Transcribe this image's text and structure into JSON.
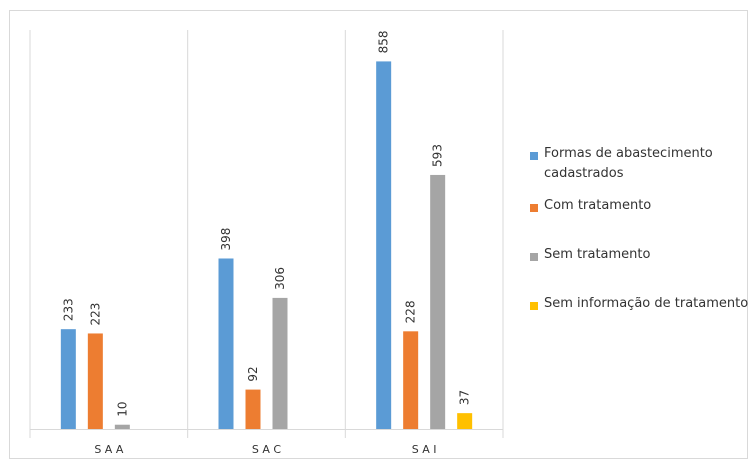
{
  "chart_data": {
    "type": "bar",
    "categories": [
      "S A A",
      "S A C",
      "S A I"
    ],
    "series": [
      {
        "name": "Formas de abastecimento cadastrados",
        "color": "#5B9BD5",
        "values": [
          233,
          398,
          858
        ]
      },
      {
        "name": "Com tratamento",
        "color": "#ED7D31",
        "values": [
          223,
          92,
          228
        ]
      },
      {
        "name": "Sem tratamento",
        "color": "#A5A5A5",
        "values": [
          10,
          306,
          593
        ]
      },
      {
        "name": "Sem informação de tratamento",
        "color": "#FFC000",
        "values": [
          null,
          null,
          37
        ]
      }
    ],
    "ylim": [
      0,
      950
    ],
    "grid": false,
    "category_separators": true,
    "legend_position": "right"
  }
}
